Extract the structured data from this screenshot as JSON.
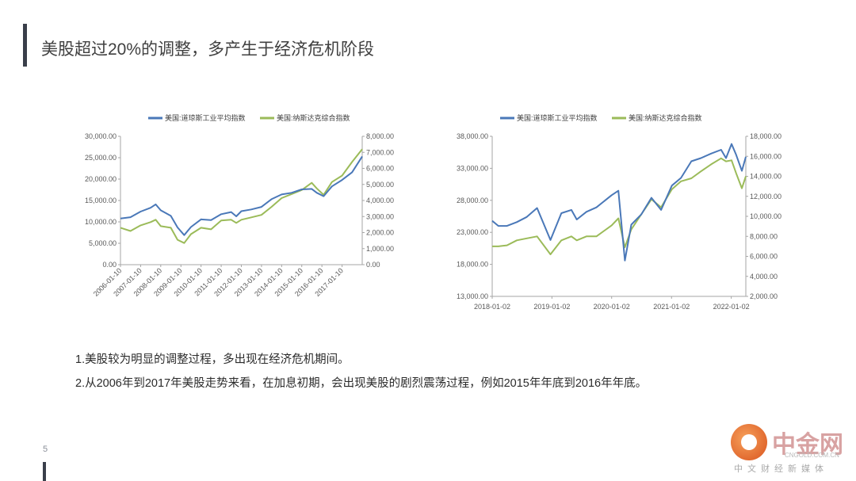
{
  "slide": {
    "title": "美股超过20%的调整，多产生于经济危机阶段",
    "page_number": "5",
    "notes": [
      "1.美股较为明显的调整过程，多出现在经济危机期间。",
      "2.从2006年到2017年美股走势来看，在加息初期，会出现美股的剧烈震荡过程，例如2015年年底到2016年年底。"
    ]
  },
  "watermark": {
    "name": "中金网",
    "url": "CNGOLD.COM.CN",
    "subtitle": "中文财经新媒体"
  },
  "colors": {
    "dow": "#4a78b8",
    "nasdaq": "#9bbb59",
    "axis": "#a6a6a6",
    "text": "#404040"
  },
  "chart_data": [
    {
      "type": "line",
      "series": [
        {
          "name": "美国:道琼斯工业平均指数",
          "axis": "left",
          "x": [
            "2006-01-10",
            "2006-07-10",
            "2007-01-10",
            "2007-07-10",
            "2007-10-10",
            "2008-01-10",
            "2008-07-10",
            "2008-11-10",
            "2009-03-10",
            "2009-07-10",
            "2010-01-10",
            "2010-07-10",
            "2011-01-10",
            "2011-07-10",
            "2011-10-10",
            "2012-01-10",
            "2012-07-10",
            "2013-01-10",
            "2013-07-10",
            "2014-01-10",
            "2014-07-10",
            "2015-01-10",
            "2015-07-10",
            "2015-10-10",
            "2016-02-10",
            "2016-07-10",
            "2017-01-10",
            "2017-07-10",
            "2018-01-10"
          ],
          "values": [
            10800,
            11100,
            12400,
            13300,
            14100,
            12700,
            11400,
            8700,
            6900,
            8800,
            10600,
            10400,
            11800,
            12300,
            11300,
            12500,
            12900,
            13500,
            15300,
            16400,
            16800,
            17600,
            17700,
            16800,
            16000,
            18300,
            19800,
            21600,
            25300
          ]
        },
        {
          "name": "美国:纳斯达克综合指数",
          "axis": "right",
          "x": [
            "2006-01-10",
            "2006-07-10",
            "2007-01-10",
            "2007-07-10",
            "2007-10-10",
            "2008-01-10",
            "2008-07-10",
            "2008-11-10",
            "2009-03-10",
            "2009-07-10",
            "2010-01-10",
            "2010-07-10",
            "2011-01-10",
            "2011-07-10",
            "2011-10-10",
            "2012-01-10",
            "2012-07-10",
            "2013-01-10",
            "2013-07-10",
            "2014-01-10",
            "2014-07-10",
            "2015-01-10",
            "2015-07-10",
            "2015-10-10",
            "2016-02-10",
            "2016-07-10",
            "2017-01-10",
            "2017-07-10",
            "2018-01-10"
          ],
          "values": [
            2300,
            2100,
            2450,
            2650,
            2800,
            2400,
            2300,
            1550,
            1350,
            1900,
            2300,
            2200,
            2750,
            2800,
            2600,
            2800,
            2950,
            3100,
            3600,
            4150,
            4400,
            4650,
            5100,
            4750,
            4350,
            5150,
            5550,
            6400,
            7200
          ]
        }
      ],
      "x_tick_labels": [
        "2006-01-10",
        "2007-01-10",
        "2008-01-10",
        "2009-01-10",
        "2010-01-10",
        "2011-01-10",
        "2012-01-10",
        "2013-01-10",
        "2014-01-10",
        "2015-01-10",
        "2016-01-10",
        "2017-01-10"
      ],
      "y_left": {
        "ylim": [
          0,
          30000
        ],
        "ticks": [
          "0.00",
          "5,000.00",
          "10,000.00",
          "15,000.00",
          "20,000.00",
          "25,000.00",
          "30,000.00"
        ]
      },
      "y_right": {
        "ylim": [
          0,
          8000
        ],
        "ticks": [
          "0.00",
          "1,000.00",
          "2,000.00",
          "3,000.00",
          "4,000.00",
          "5,000.00",
          "6,000.00",
          "7,000.00",
          "8,000.00"
        ]
      },
      "legend": "top",
      "grid": false
    },
    {
      "type": "line",
      "series": [
        {
          "name": "美国:道琼斯工业平均指数",
          "axis": "left",
          "x": [
            "2018-01-02",
            "2018-02-09",
            "2018-04-02",
            "2018-06-01",
            "2018-08-01",
            "2018-10-03",
            "2018-12-24",
            "2019-03-01",
            "2019-05-01",
            "2019-06-03",
            "2019-08-01",
            "2019-10-01",
            "2020-01-02",
            "2020-02-12",
            "2020-03-23",
            "2020-05-01",
            "2020-07-01",
            "2020-09-01",
            "2020-10-30",
            "2021-01-04",
            "2021-03-01",
            "2021-05-03",
            "2021-07-01",
            "2021-09-01",
            "2021-11-01",
            "2021-12-01",
            "2022-01-04",
            "2022-02-01",
            "2022-03-08",
            "2022-04-01"
          ],
          "values": [
            24800,
            24000,
            24000,
            24600,
            25400,
            26800,
            21800,
            26000,
            26500,
            25000,
            26200,
            26900,
            28800,
            29500,
            18600,
            24200,
            25800,
            28400,
            26500,
            30300,
            31500,
            34100,
            34600,
            35300,
            35900,
            34600,
            36800,
            35100,
            32600,
            34800
          ]
        },
        {
          "name": "美国:纳斯达克综合指数",
          "axis": "right",
          "x": [
            "2018-01-02",
            "2018-02-09",
            "2018-04-02",
            "2018-06-01",
            "2018-08-01",
            "2018-10-03",
            "2018-12-24",
            "2019-03-01",
            "2019-05-01",
            "2019-06-03",
            "2019-08-01",
            "2019-10-01",
            "2020-01-02",
            "2020-02-12",
            "2020-03-23",
            "2020-05-01",
            "2020-07-01",
            "2020-09-01",
            "2020-10-30",
            "2021-01-04",
            "2021-03-01",
            "2021-05-03",
            "2021-07-01",
            "2021-09-01",
            "2021-11-01",
            "2021-12-01",
            "2022-01-04",
            "2022-02-01",
            "2022-03-08",
            "2022-04-01"
          ],
          "values": [
            7000,
            7000,
            7100,
            7600,
            7800,
            8000,
            6200,
            7600,
            8000,
            7600,
            8000,
            8000,
            9100,
            9800,
            6900,
            8700,
            10200,
            11700,
            10900,
            12700,
            13500,
            13800,
            14500,
            15200,
            15800,
            15500,
            15600,
            14300,
            12800,
            14000
          ]
        }
      ],
      "x_tick_labels": [
        "2018-01-02",
        "2019-01-02",
        "2020-01-02",
        "2021-01-02",
        "2022-01-02"
      ],
      "y_left": {
        "ylim": [
          13000,
          38000
        ],
        "ticks": [
          "13,000.00",
          "18,000.00",
          "23,000.00",
          "28,000.00",
          "33,000.00",
          "38,000.00"
        ]
      },
      "y_right": {
        "ylim": [
          2000,
          18000
        ],
        "ticks": [
          "2,000.00",
          "4,000.00",
          "6,000.00",
          "8,000.00",
          "10,000.00",
          "12,000.00",
          "14,000.00",
          "16,000.00",
          "18,000.00"
        ]
      },
      "legend": "top",
      "grid": false
    }
  ]
}
